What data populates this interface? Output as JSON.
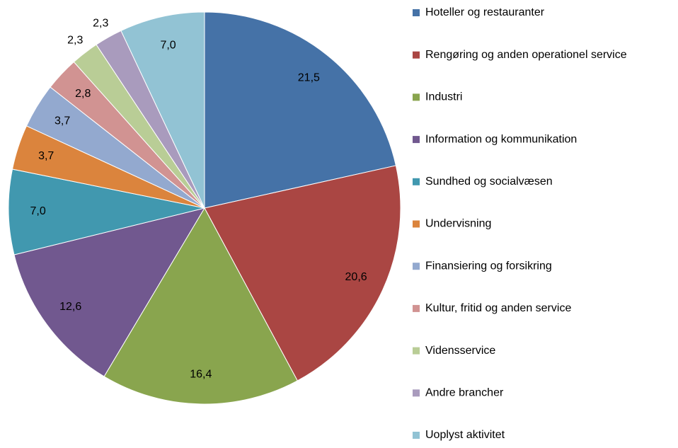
{
  "chart_data": {
    "type": "pie",
    "categories": [
      "Hoteller og restauranter",
      "Rengøring og anden operationel service",
      "Industri",
      "Information og kommunikation",
      "Sundhed og socialvæsen",
      "Undervisning",
      "Finansiering og forsikring",
      "Kultur, fritid og anden service",
      "Vidensservice",
      "Andre brancher",
      "Uoplyst aktivitet"
    ],
    "values": [
      21.5,
      20.6,
      16.4,
      12.6,
      7.0,
      3.7,
      3.7,
      2.8,
      2.3,
      2.3,
      7.0
    ],
    "value_labels": [
      "21,5",
      "20,6",
      "16,4",
      "12,6",
      "7,0",
      "3,7",
      "3,7",
      "2,8",
      "2,3",
      "2,3",
      "7,0"
    ],
    "colors": [
      "#4572a7",
      "#aa4643",
      "#89a54e",
      "#71588f",
      "#4198af",
      "#db843d",
      "#93a9cf",
      "#d19392",
      "#b9cd96",
      "#a99bbd",
      "#92c3d4"
    ],
    "legend": "right"
  }
}
